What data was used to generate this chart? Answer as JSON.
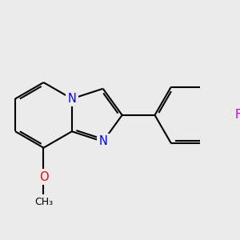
{
  "background_color": "#EBEBEB",
  "bond_color": "#000000",
  "N_color": "#0000FF",
  "O_color": "#FF0000",
  "F_color": "#CC00CC",
  "line_width": 1.5,
  "dbo": 0.07,
  "figsize": [
    3.0,
    3.0
  ],
  "dpi": 100,
  "xlim": [
    -0.3,
    5.8
  ],
  "ylim": [
    -1.5,
    3.2
  ]
}
